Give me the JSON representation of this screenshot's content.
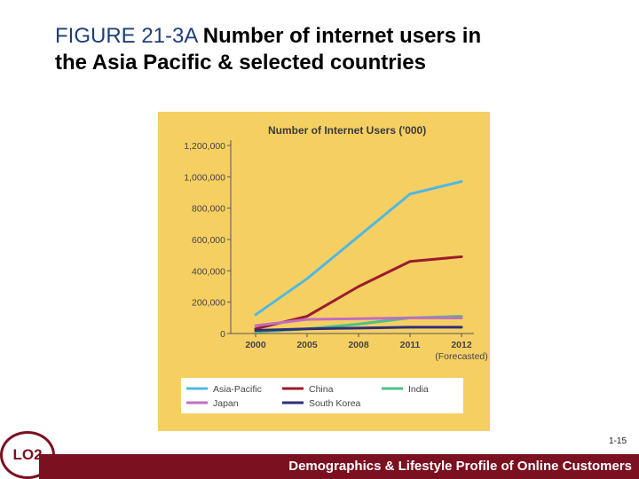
{
  "slide": {
    "figure_label": "FIGURE 21-3A",
    "title_rest": "Number of internet users in",
    "title_line2": "the Asia Pacific & selected countries",
    "lo_badge": "LO2",
    "page_number": "1-15",
    "footer": "Demographics & Lifestyle Profile of Online Customers"
  },
  "colors": {
    "panel_background": "#f6cf63",
    "footer_bar": "#7b1020"
  },
  "chart_data": {
    "type": "line",
    "title": "Number of Internet Users ('000)",
    "categories": [
      "2000",
      "2005",
      "2008",
      "2011",
      "2012\n(Forecasted)"
    ],
    "category_lines": [
      [
        "2000"
      ],
      [
        "2005"
      ],
      [
        "2008"
      ],
      [
        "2011"
      ],
      [
        "2012",
        "(Forecasted)"
      ]
    ],
    "ylim": [
      0,
      1200000
    ],
    "yticks": [
      "0",
      "200,000",
      "400,000",
      "600,000",
      "800,000",
      "1,000,000",
      "1,200,000"
    ],
    "ytick_values": [
      0,
      200000,
      400000,
      600000,
      800000,
      1000000,
      1200000
    ],
    "grid": false,
    "legend_placement": "bottom",
    "series": [
      {
        "name": "Asia-Pacific",
        "color": "#4fb8e4",
        "values": [
          120000,
          350000,
          620000,
          890000,
          970000
        ]
      },
      {
        "name": "China",
        "color": "#9b1b2c",
        "values": [
          30000,
          110000,
          300000,
          460000,
          490000
        ]
      },
      {
        "name": "India",
        "color": "#4cc08a",
        "values": [
          10000,
          30000,
          60000,
          100000,
          110000
        ]
      },
      {
        "name": "Japan",
        "color": "#c06ec0",
        "values": [
          50000,
          90000,
          95000,
          100000,
          100000
        ]
      },
      {
        "name": "South Korea",
        "color": "#2d2f7a",
        "values": [
          20000,
          30000,
          35000,
          40000,
          40000
        ]
      }
    ]
  }
}
